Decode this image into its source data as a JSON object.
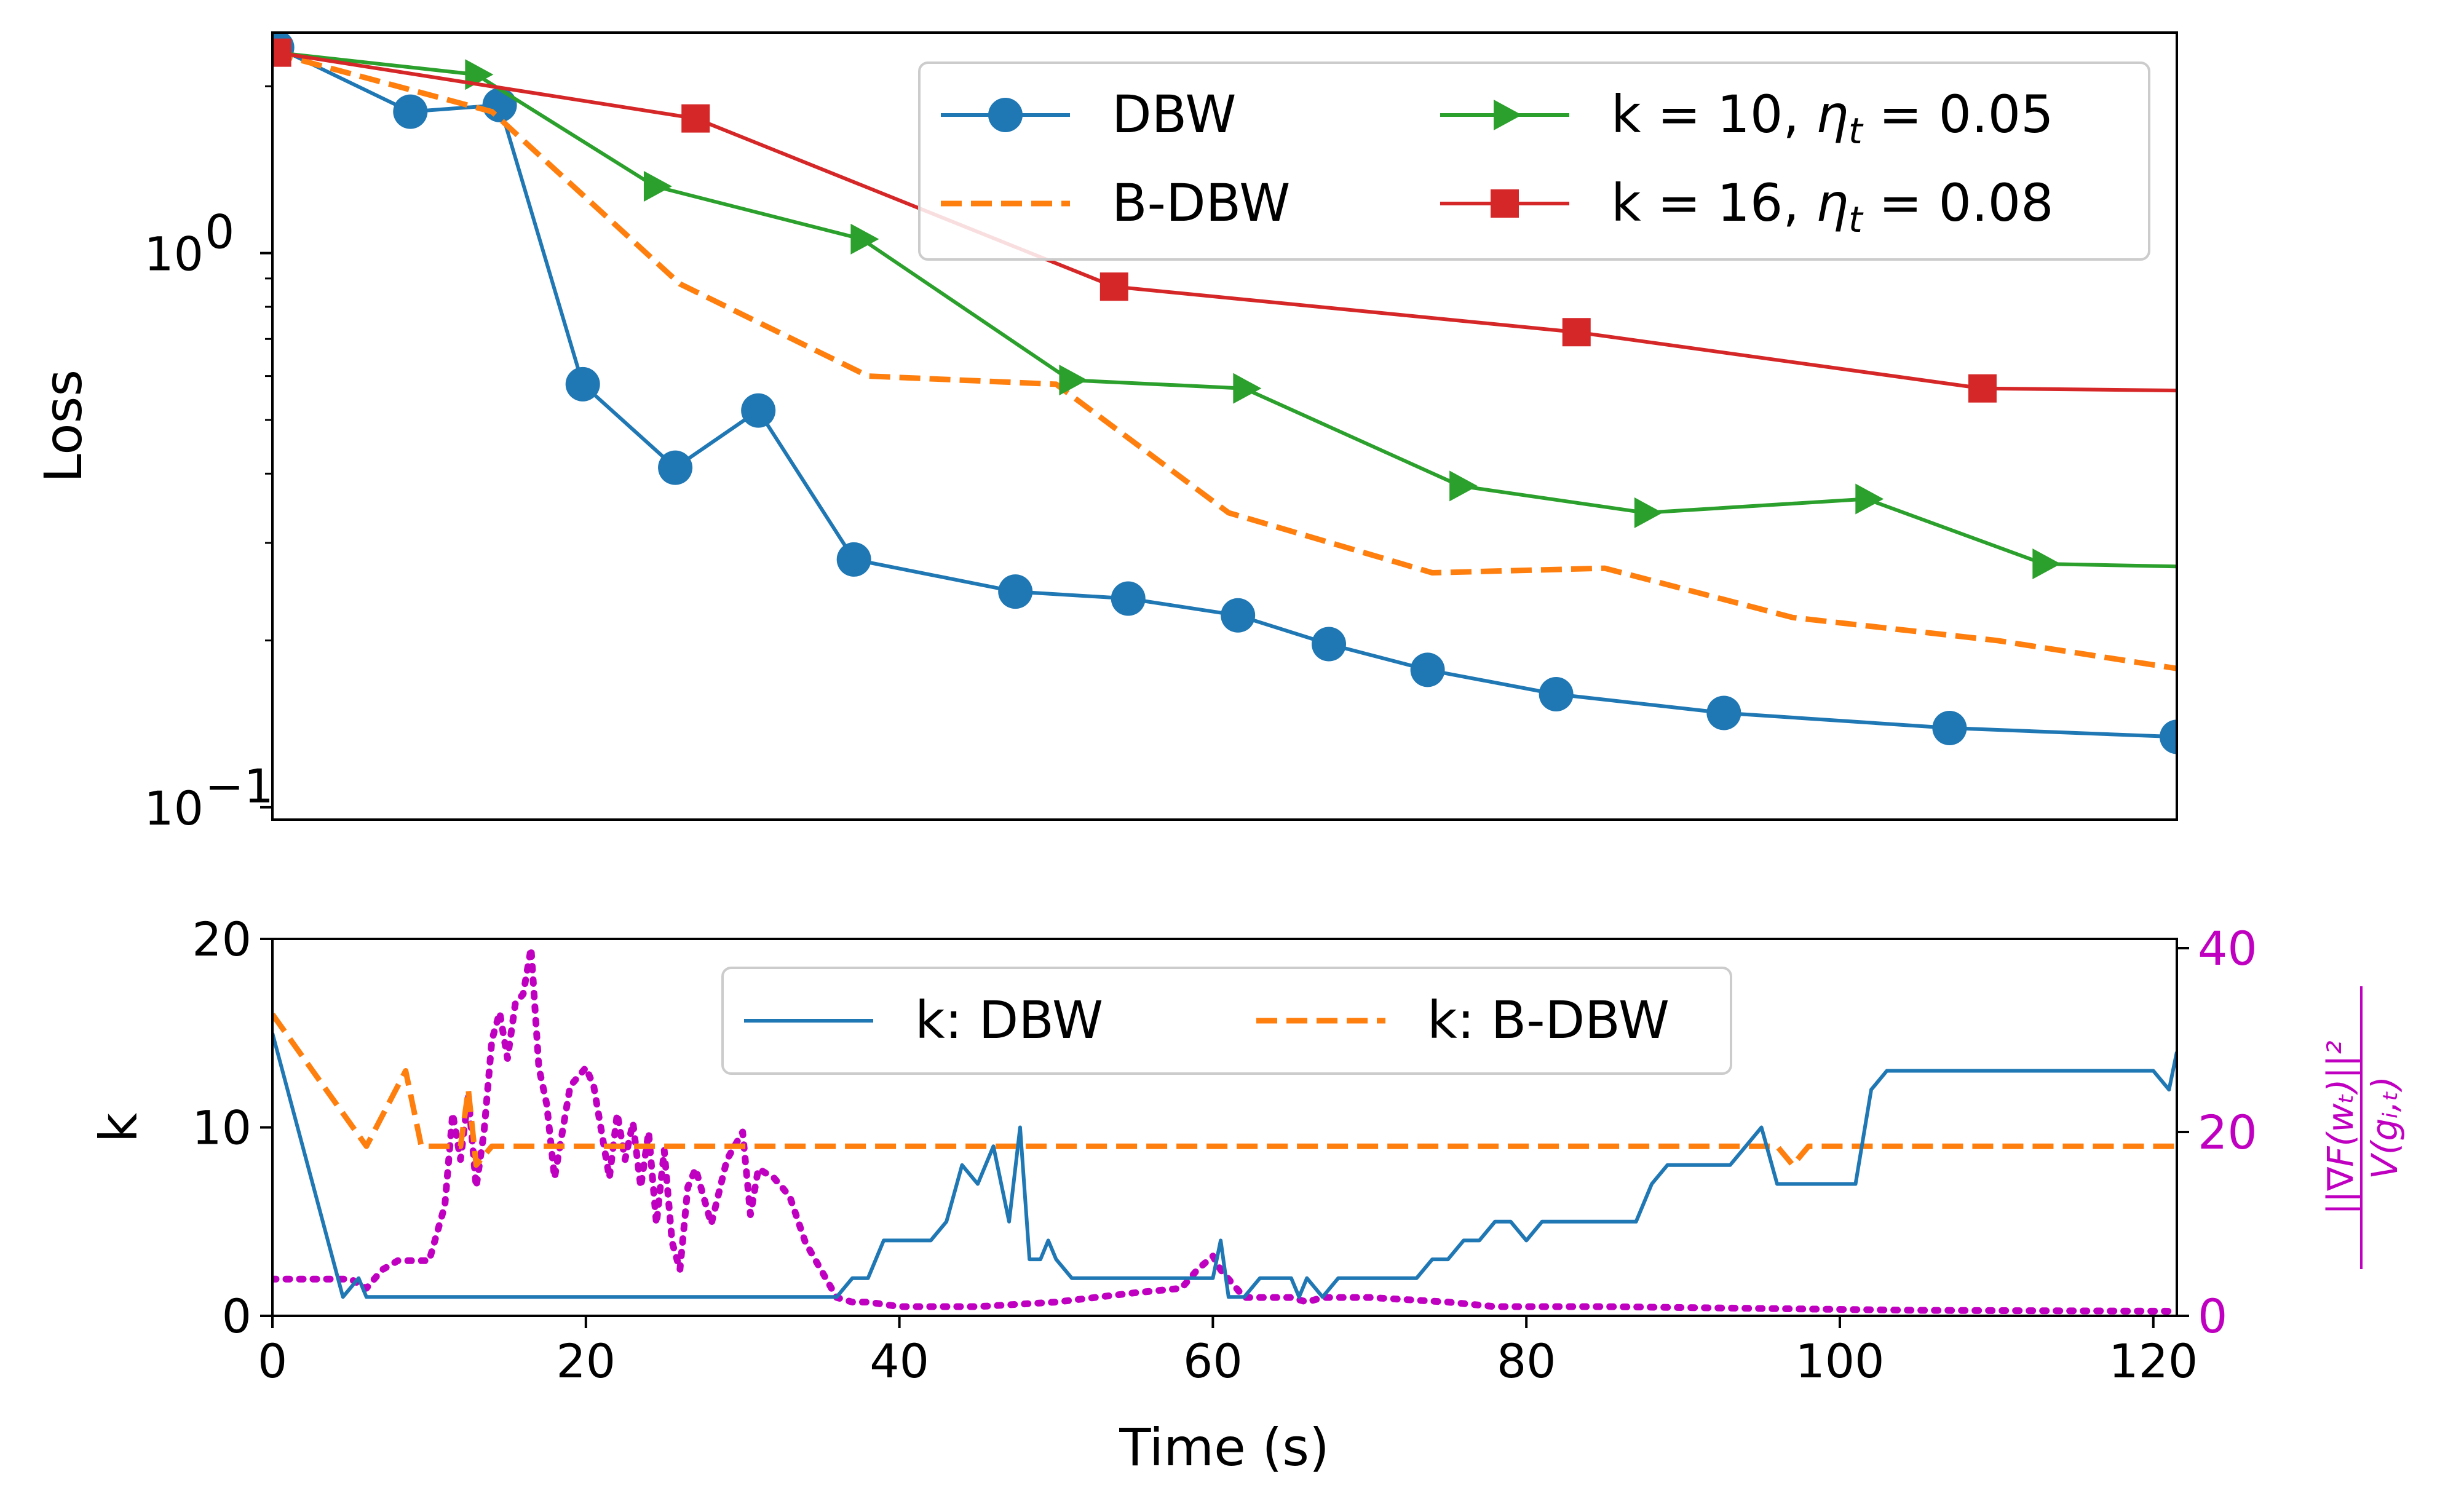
{
  "colors": {
    "dbw": "#1f77b4",
    "bdbw": "#ff7f0e",
    "k10": "#2ca02c",
    "k16": "#d62728",
    "ratio": "#c000c0"
  },
  "chart_data": [
    {
      "type": "line",
      "ylabel": "Loss",
      "yscale": "log",
      "xlim": [
        0,
        121.5
      ],
      "ylim": [
        0.095,
        2.5
      ],
      "y_ticks": [
        {
          "value": 1,
          "mantissa": "10",
          "exponent": "0"
        },
        {
          "value": 0.1,
          "mantissa": "10",
          "exponent": "−1"
        }
      ],
      "grid": false,
      "legend_position": "top-right",
      "series": [
        {
          "name": "DBW",
          "color_key": "dbw",
          "style": "solid",
          "marker": "circle",
          "x": [
            0.3,
            8.8,
            14.5,
            19.8,
            25.7,
            31.0,
            37.1,
            47.4,
            54.6,
            61.6,
            67.4,
            73.7,
            81.9,
            92.6,
            107.0,
            121.5
          ],
          "y": [
            2.35,
            1.8,
            1.85,
            0.58,
            0.41,
            0.52,
            0.28,
            0.245,
            0.238,
            0.222,
            0.197,
            0.177,
            0.16,
            0.148,
            0.139,
            0.134
          ],
          "marker_indices": [
            0,
            1,
            2,
            3,
            4,
            5,
            6,
            7,
            8,
            9,
            10,
            11,
            12,
            13,
            14,
            15
          ]
        },
        {
          "name": "B-DBW",
          "color_key": "bdbw",
          "style": "dashed",
          "marker": "none",
          "x": [
            0,
            14,
            26,
            38,
            50,
            61,
            74,
            85,
            97,
            110,
            121.5
          ],
          "y": [
            2.3,
            1.8,
            0.88,
            0.6,
            0.58,
            0.34,
            0.265,
            0.27,
            0.22,
            0.2,
            0.178
          ],
          "marker_indices": []
        },
        {
          "name": "k = 10, η_t = 0.05",
          "color_key": "k10",
          "style": "solid",
          "marker": "triangle-right",
          "x": [
            0.3,
            13.0,
            24.4,
            37.6,
            50.9,
            62.0,
            75.8,
            87.6,
            101.7,
            113.0,
            121.5
          ],
          "y": [
            2.3,
            2.1,
            1.32,
            1.06,
            0.59,
            0.57,
            0.38,
            0.34,
            0.36,
            0.275,
            0.272
          ],
          "marker_indices": [
            1,
            2,
            3,
            4,
            5,
            6,
            7,
            8,
            9
          ]
        },
        {
          "name": "k = 16, η_t = 0.08",
          "color_key": "k16",
          "style": "solid",
          "marker": "square",
          "x": [
            0.3,
            27.0,
            53.7,
            83.2,
            109.1,
            121.5
          ],
          "y": [
            2.3,
            1.75,
            0.87,
            0.72,
            0.57,
            0.565
          ],
          "marker_indices": [
            0,
            1,
            2,
            3,
            4
          ]
        }
      ],
      "legend": [
        {
          "series": 0,
          "label": "DBW"
        },
        {
          "series": 1,
          "label": "B-DBW"
        },
        {
          "series": 2,
          "prefix": "k = 10, ",
          "symbol": "η",
          "sub": "t",
          "suffix": " = 0.05"
        },
        {
          "series": 3,
          "prefix": "k = 16, ",
          "symbol": "η",
          "sub": "t",
          "suffix": " = 0.08"
        }
      ]
    },
    {
      "type": "line",
      "xlabel": "Time (s)",
      "ylabel": "k",
      "y2label_parts": [
        "||∇F(wₜ)||²",
        "V(gᵢ,ₜ)"
      ],
      "xlim": [
        0,
        121.5
      ],
      "ylim": [
        0,
        20
      ],
      "y2lim": [
        0,
        41
      ],
      "x_ticks": [
        "0",
        "20",
        "40",
        "60",
        "80",
        "100",
        "120"
      ],
      "x_tick_values": [
        0,
        20,
        40,
        60,
        80,
        100,
        120
      ],
      "y_ticks": [
        "0",
        "10",
        "20"
      ],
      "y_tick_values": [
        0,
        10,
        20
      ],
      "y2_ticks": [
        "0",
        "20",
        "40"
      ],
      "y2_tick_values": [
        0,
        20,
        40
      ],
      "grid": false,
      "legend_position": "upper-center",
      "series": [
        {
          "name": "k: DBW",
          "color_key": "dbw",
          "style": "solid",
          "axis": "left",
          "x": [
            0,
            4.5,
            5.5,
            6,
            36,
            37,
            38,
            39,
            40,
            41,
            42,
            43,
            44,
            45,
            46,
            47,
            47.7,
            48.3,
            49,
            49.5,
            50,
            51,
            52,
            60,
            60.5,
            61,
            62,
            63,
            64,
            65,
            65.5,
            66,
            67,
            68,
            70,
            73,
            74,
            75,
            76,
            77,
            78,
            79,
            80,
            81,
            82,
            83,
            84,
            85,
            86,
            87,
            88,
            89,
            90,
            91,
            92,
            93,
            94,
            95,
            96,
            97,
            98,
            99,
            100,
            101,
            102,
            103,
            104,
            105,
            110,
            118,
            120,
            121,
            121.5
          ],
          "y": [
            15,
            1,
            2,
            1,
            1,
            2,
            2,
            4,
            4,
            4,
            4,
            5,
            8,
            7,
            9,
            5,
            10,
            3,
            3,
            4,
            3,
            2,
            2,
            2,
            4,
            1,
            1,
            2,
            2,
            2,
            1,
            2,
            1,
            2,
            2,
            2,
            3,
            3,
            4,
            4,
            5,
            5,
            4,
            5,
            5,
            5,
            5,
            5,
            5,
            5,
            7,
            8,
            8,
            8,
            8,
            8,
            9,
            10,
            7,
            7,
            7,
            7,
            7,
            7,
            12,
            13,
            13,
            13,
            13,
            13,
            13,
            12,
            14
          ]
        },
        {
          "name": "k: B-DBW",
          "color_key": "bdbw",
          "style": "dashed",
          "axis": "left",
          "x": [
            0,
            6,
            8.5,
            9.5,
            12,
            12.5,
            13,
            14,
            14.5,
            15,
            20,
            22,
            24,
            26,
            28,
            96,
            97,
            98,
            121.5
          ],
          "y": [
            16,
            9,
            13,
            9,
            9,
            12,
            8,
            9,
            9,
            9,
            9,
            9,
            9,
            9,
            9,
            9,
            8,
            9,
            9
          ],
          "legend_label": "k: B-DBW"
        },
        {
          "name": "ratio",
          "color_key": "ratio",
          "style": "dotted",
          "axis": "right",
          "x": [
            0,
            5,
            6,
            7,
            8,
            10,
            11,
            11.5,
            12,
            12.5,
            13,
            13.5,
            14,
            14.5,
            15,
            15.5,
            16,
            16.5,
            17,
            17.5,
            18,
            19,
            20,
            20.5,
            21,
            21.5,
            22,
            22.5,
            23,
            23.5,
            24,
            24.5,
            25,
            25.5,
            26,
            26.5,
            27,
            28,
            29,
            30,
            30.5,
            31,
            32,
            33,
            34,
            35,
            36,
            37,
            38,
            40,
            45,
            50,
            55,
            58,
            59,
            60,
            60.5,
            61,
            62,
            63,
            64,
            65,
            66,
            67,
            68,
            70,
            75,
            78,
            85,
            95,
            105,
            121.5
          ],
          "y": [
            4,
            4,
            3,
            5,
            6,
            6,
            12,
            22,
            17,
            24,
            14,
            20,
            30,
            33,
            28,
            34,
            35,
            40,
            27,
            23,
            15,
            25,
            27,
            25,
            20,
            15,
            22,
            17,
            21,
            14,
            20,
            10,
            18,
            8,
            5,
            14,
            16,
            10,
            17,
            20,
            11,
            16,
            15,
            13,
            8,
            5,
            2,
            1.5,
            1.5,
            1,
            1,
            1.5,
            2.5,
            3,
            5,
            6.5,
            5,
            4,
            2,
            2,
            2,
            2,
            1.5,
            2,
            2,
            2,
            1.5,
            1,
            1,
            0.8,
            0.6,
            0.5
          ]
        }
      ],
      "legend": [
        {
          "series": 0,
          "label": "k: DBW"
        },
        {
          "series": 1,
          "label": "k: B-DBW"
        }
      ]
    }
  ]
}
